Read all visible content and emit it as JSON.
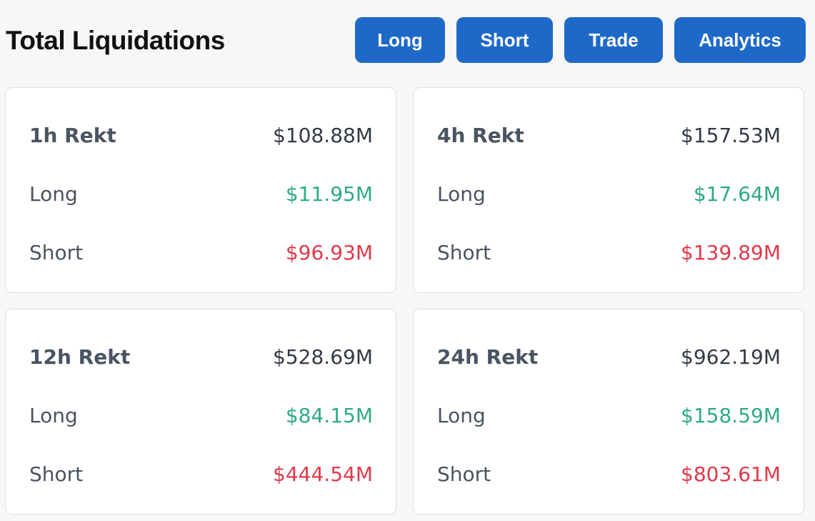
{
  "header": {
    "title": "Total Liquidations",
    "buttons": {
      "long": "Long",
      "short": "Short",
      "trade": "Trade",
      "analytics": "Analytics"
    }
  },
  "colors": {
    "button_bg": "#1e69c8",
    "long": "#2eaa87",
    "short": "#e0394b"
  },
  "cards": [
    {
      "title": "1h Rekt",
      "total": "$108.88M",
      "long_label": "Long",
      "long_value": "$11.95M",
      "short_label": "Short",
      "short_value": "$96.93M"
    },
    {
      "title": "4h Rekt",
      "total": "$157.53M",
      "long_label": "Long",
      "long_value": "$17.64M",
      "short_label": "Short",
      "short_value": "$139.89M"
    },
    {
      "title": "12h Rekt",
      "total": "$528.69M",
      "long_label": "Long",
      "long_value": "$84.15M",
      "short_label": "Short",
      "short_value": "$444.54M"
    },
    {
      "title": "24h Rekt",
      "total": "$962.19M",
      "long_label": "Long",
      "long_value": "$158.59M",
      "short_label": "Short",
      "short_value": "$803.61M"
    }
  ]
}
